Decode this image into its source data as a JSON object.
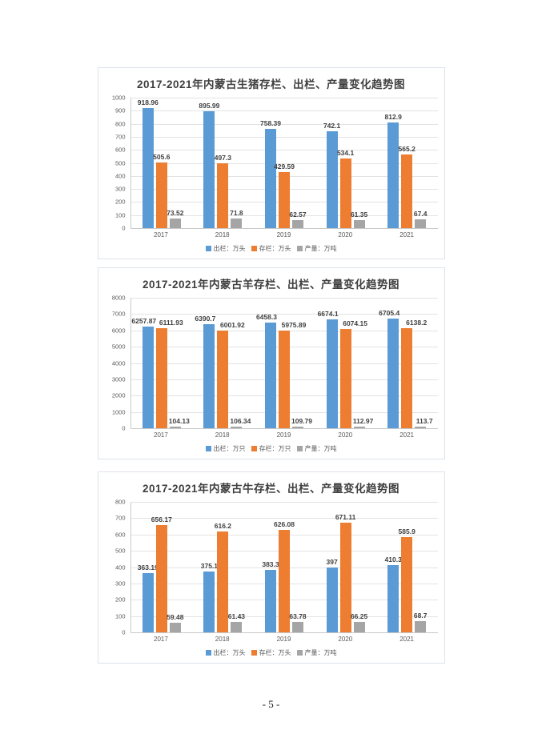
{
  "page": {
    "page_number": "- 5 -"
  },
  "colors": {
    "slaughtered": "#5B9BD5",
    "stock": "#ED7D31",
    "output": "#A5A5A5"
  },
  "chart_data": [
    {
      "type": "bar",
      "title": "2017-2021年内蒙古生猪存栏、出栏、产量变化趋势图",
      "categories": [
        "2017",
        "2018",
        "2019",
        "2020",
        "2021"
      ],
      "series": [
        {
          "key": "slaughtered",
          "name": "出栏：万头",
          "color": "#5B9BD5",
          "values": [
            918.96,
            895.99,
            758.39,
            742.1,
            812.9
          ]
        },
        {
          "key": "stock",
          "name": "存栏：万头",
          "color": "#ED7D31",
          "values": [
            505.6,
            497.3,
            429.59,
            534.1,
            565.2
          ]
        },
        {
          "key": "output",
          "name": "产量：万吨",
          "color": "#A5A5A5",
          "values": [
            73.52,
            71.8,
            62.57,
            61.35,
            67.4
          ]
        }
      ],
      "xlabel": "",
      "ylabel": "",
      "ylim": [
        0,
        1000
      ],
      "ystep": 100,
      "grid": true,
      "legend_position": "bottom"
    },
    {
      "type": "bar",
      "title": "2017-2021年内蒙古羊存栏、出栏、产量变化趋势图",
      "categories": [
        "2017",
        "2018",
        "2019",
        "2020",
        "2021"
      ],
      "series": [
        {
          "key": "slaughtered",
          "name": "出栏：万只",
          "color": "#5B9BD5",
          "values": [
            6257.87,
            6390.7,
            6458.3,
            6674.1,
            6705.4
          ]
        },
        {
          "key": "stock",
          "name": "存栏：万只",
          "color": "#ED7D31",
          "values": [
            6111.93,
            6001.92,
            5975.89,
            6074.15,
            6138.2
          ]
        },
        {
          "key": "output",
          "name": "产量：万吨",
          "color": "#A5A5A5",
          "values": [
            104.13,
            106.34,
            109.79,
            112.97,
            113.7
          ]
        }
      ],
      "xlabel": "",
      "ylabel": "",
      "ylim": [
        0,
        8000
      ],
      "ystep": 1000,
      "grid": true,
      "legend_position": "bottom",
      "label_dx": [
        -5,
        12,
        5
      ]
    },
    {
      "type": "bar",
      "title": "2017-2021年内蒙古牛存栏、出栏、产量变化趋势图",
      "categories": [
        "2017",
        "2018",
        "2019",
        "2020",
        "2021"
      ],
      "series": [
        {
          "key": "slaughtered",
          "name": "出栏：万头",
          "color": "#5B9BD5",
          "values": [
            363.19,
            375.1,
            383.3,
            397,
            410.3
          ]
        },
        {
          "key": "stock",
          "name": "存栏：万头",
          "color": "#ED7D31",
          "values": [
            656.17,
            616.2,
            626.08,
            671.11,
            585.9
          ]
        },
        {
          "key": "output",
          "name": "产量：万吨",
          "color": "#A5A5A5",
          "values": [
            59.48,
            61.43,
            63.78,
            66.25,
            68.7
          ]
        }
      ],
      "xlabel": "",
      "ylabel": "",
      "ylim": [
        0,
        800
      ],
      "ystep": 100,
      "grid": true,
      "legend_position": "bottom"
    }
  ]
}
